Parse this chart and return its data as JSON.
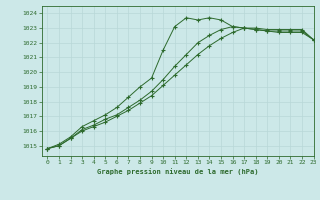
{
  "title": "Graphe pression niveau de la mer (hPa)",
  "bg_color": "#cce8e8",
  "grid_color": "#b8d8d8",
  "line_color": "#2d6a2d",
  "xlim": [
    -0.5,
    23
  ],
  "ylim": [
    1014.3,
    1024.5
  ],
  "yticks": [
    1015,
    1016,
    1017,
    1018,
    1019,
    1020,
    1021,
    1022,
    1023,
    1024
  ],
  "xticks": [
    0,
    1,
    2,
    3,
    4,
    5,
    6,
    7,
    8,
    9,
    10,
    11,
    12,
    13,
    14,
    15,
    16,
    17,
    18,
    19,
    20,
    21,
    22,
    23
  ],
  "line1_x": [
    0,
    1,
    2,
    3,
    4,
    5,
    6,
    7,
    8,
    9,
    10,
    11,
    12,
    13,
    14,
    15,
    16,
    17,
    18,
    19,
    20,
    21,
    22,
    23
  ],
  "line1_y": [
    1014.8,
    1015.1,
    1015.6,
    1016.3,
    1016.7,
    1017.1,
    1017.6,
    1018.3,
    1019.0,
    1019.6,
    1021.5,
    1023.1,
    1023.7,
    1023.55,
    1023.7,
    1023.55,
    1023.1,
    1023.0,
    1023.0,
    1022.9,
    1022.9,
    1022.9,
    1022.9,
    1022.2
  ],
  "line2_x": [
    0,
    1,
    2,
    3,
    4,
    5,
    6,
    7,
    8,
    9,
    10,
    11,
    12,
    13,
    14,
    15,
    16,
    17,
    18,
    19,
    20,
    21,
    22,
    23
  ],
  "line2_y": [
    1014.8,
    1015.0,
    1015.5,
    1016.1,
    1016.4,
    1016.8,
    1017.1,
    1017.6,
    1018.1,
    1018.7,
    1019.5,
    1020.4,
    1021.2,
    1022.0,
    1022.5,
    1022.9,
    1023.1,
    1023.0,
    1022.9,
    1022.8,
    1022.8,
    1022.8,
    1022.8,
    1022.2
  ],
  "line3_x": [
    0,
    1,
    2,
    3,
    4,
    5,
    6,
    7,
    8,
    9,
    10,
    11,
    12,
    13,
    14,
    15,
    16,
    17,
    18,
    19,
    20,
    21,
    22,
    23
  ],
  "line3_y": [
    1014.8,
    1015.0,
    1015.5,
    1016.0,
    1016.3,
    1016.6,
    1017.0,
    1017.4,
    1017.9,
    1018.4,
    1019.1,
    1019.8,
    1020.5,
    1021.2,
    1021.8,
    1022.3,
    1022.7,
    1023.0,
    1022.9,
    1022.8,
    1022.7,
    1022.7,
    1022.7,
    1022.2
  ]
}
